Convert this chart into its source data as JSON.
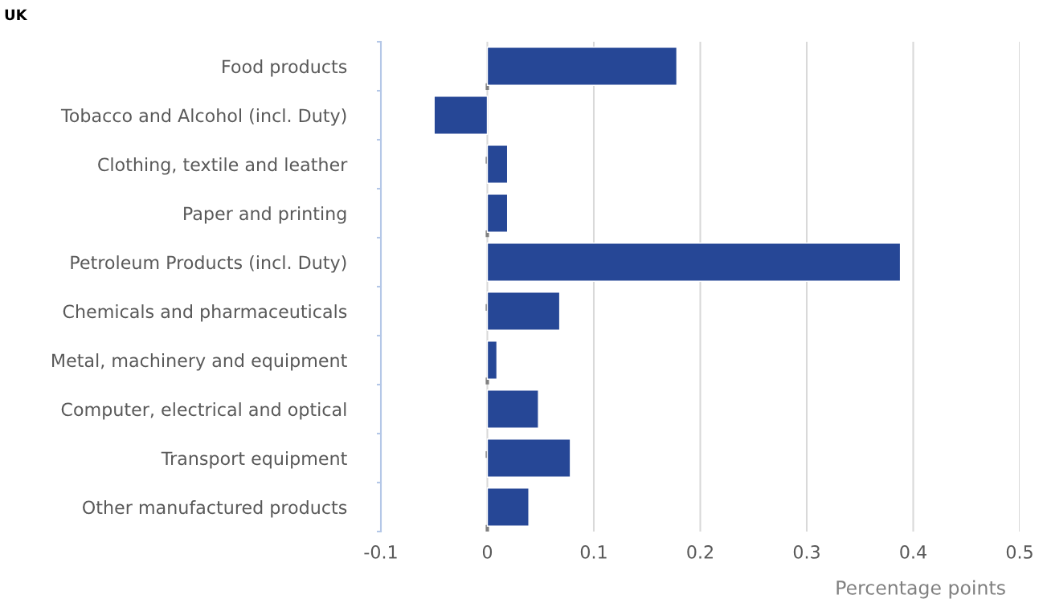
{
  "chart_data": {
    "type": "bar",
    "orientation": "horizontal",
    "title": "UK",
    "xlabel": "Percentage points",
    "categories": [
      "Food products",
      "Tobacco and Alcohol (incl. Duty)",
      "Clothing, textile and leather",
      "Paper and printing",
      "Petroleum Products (incl. Duty)",
      "Chemicals and pharmaceuticals",
      "Metal, machinery and equipment",
      "Computer, electrical and optical",
      "Transport equipment",
      "Other manufactured products"
    ],
    "values": [
      0.178,
      -0.05,
      0.019,
      0.019,
      0.388,
      0.068,
      0.009,
      0.048,
      0.078,
      0.039
    ],
    "color": "#264796",
    "xlim": [
      -0.1,
      0.5
    ],
    "xticks": [
      -0.1,
      0,
      0.1,
      0.2,
      0.3,
      0.4,
      0.5
    ],
    "grid": "x",
    "ref_lines": [
      {
        "axis": "x",
        "value": 0,
        "color": "#808080",
        "line_style": "dashed"
      }
    ]
  }
}
